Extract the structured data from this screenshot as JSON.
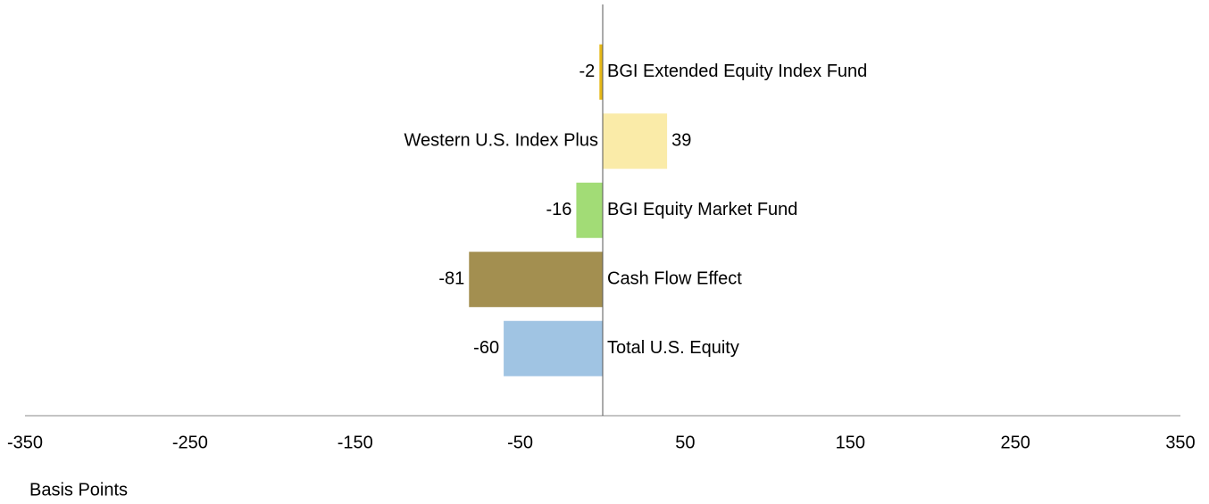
{
  "chart_data": {
    "type": "bar",
    "orientation": "horizontal",
    "categories": [
      "BGI Extended Equity Index Fund",
      "Western U.S. Index Plus",
      "BGI Equity Market Fund",
      "Cash Flow Effect",
      "Total U.S. Equity"
    ],
    "values": [
      -2,
      39,
      -16,
      -81,
      -60
    ],
    "colors": [
      "#e6b817",
      "#faeba8",
      "#a2dc76",
      "#a38f50",
      "#a0c4e3"
    ],
    "xlim": [
      -350,
      350
    ],
    "xticks": [
      -350,
      -250,
      -150,
      -50,
      50,
      150,
      250,
      350
    ],
    "xlabel": "Basis Points",
    "grid": false
  }
}
